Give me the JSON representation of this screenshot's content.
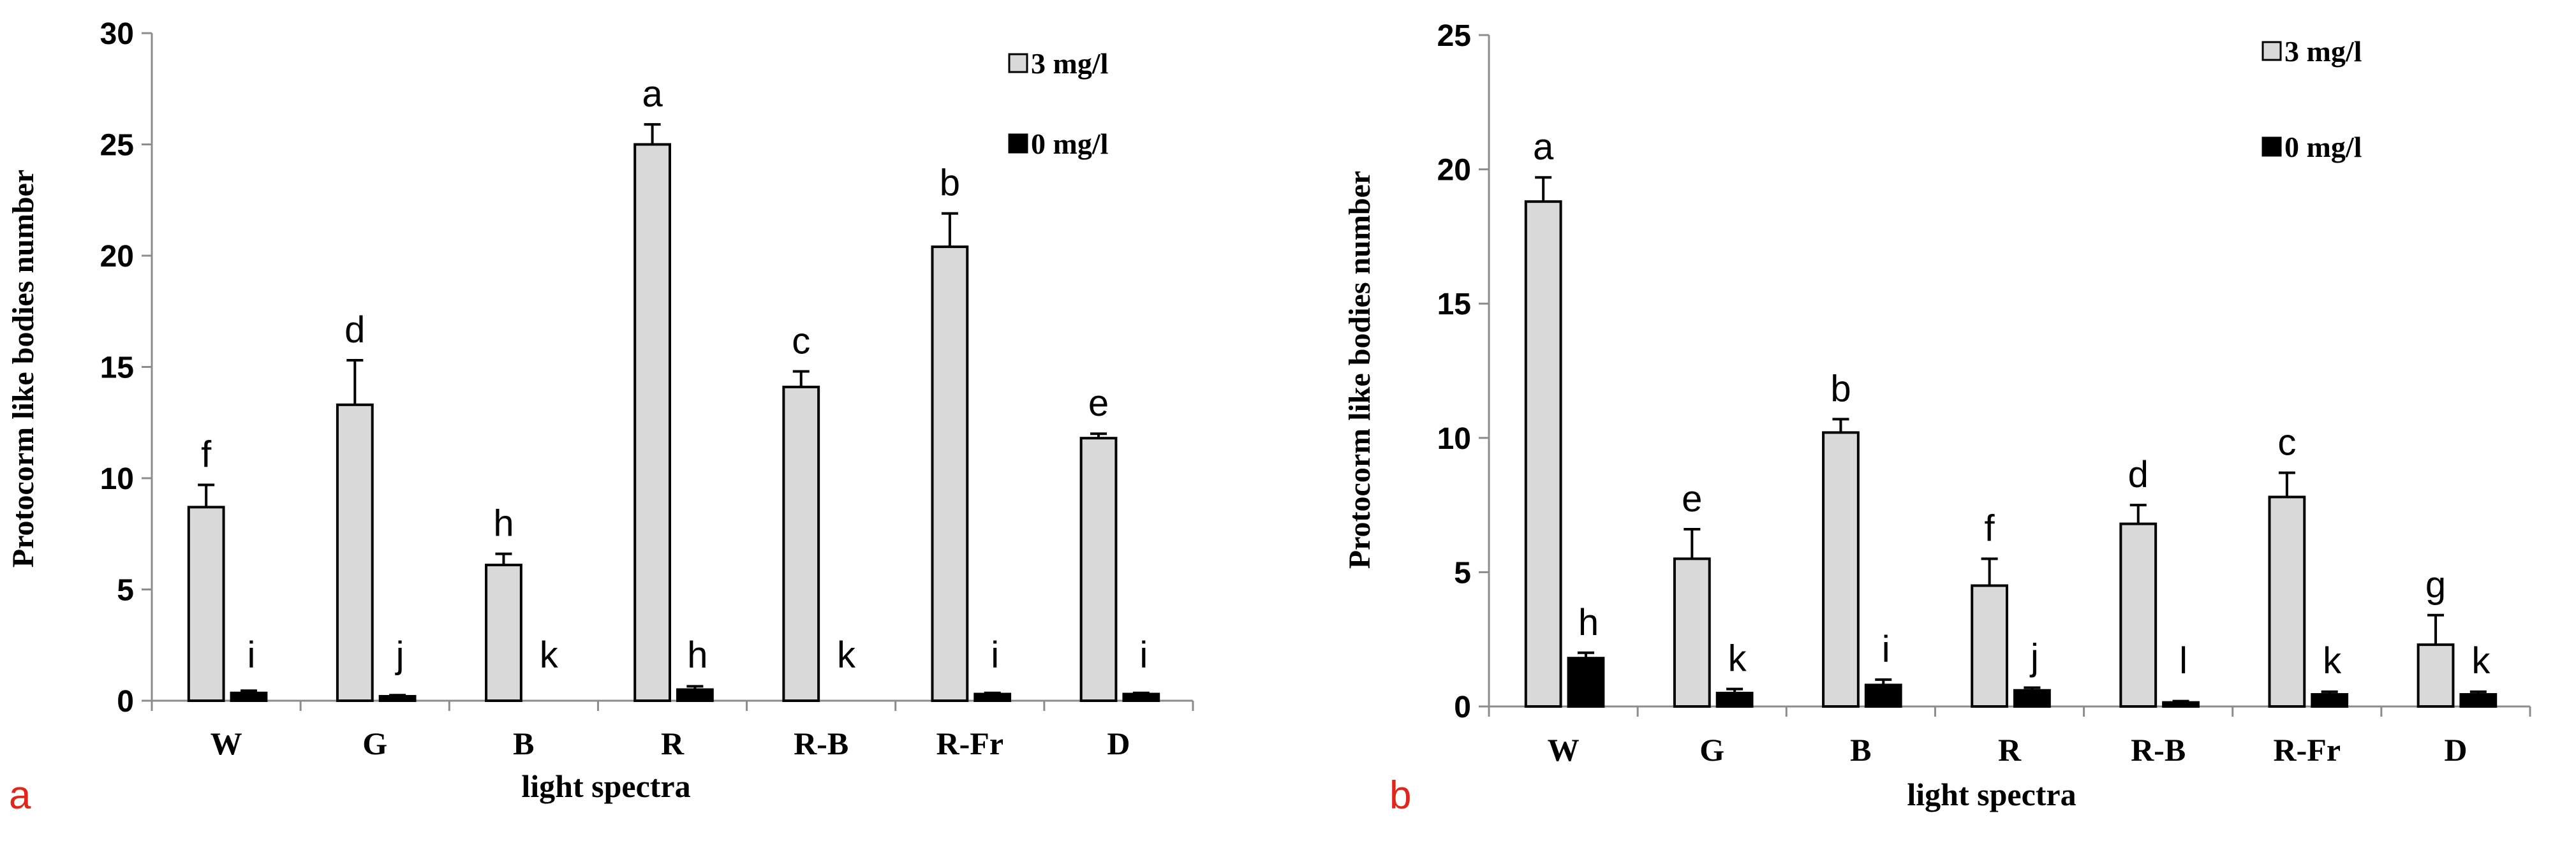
{
  "chart_data": [
    {
      "type": "bar",
      "panel_label": "a",
      "title": "",
      "xlabel": "light spectra",
      "ylabel": "Protocorm like bodies number",
      "ylim": [
        0,
        30
      ],
      "yticks": [
        0,
        5,
        10,
        15,
        20,
        25,
        30
      ],
      "categories": [
        "W",
        "G",
        "B",
        "R",
        "R-B",
        "R-Fr",
        "D"
      ],
      "series": [
        {
          "name": "3 mg/l",
          "color": "#d9d9d9",
          "values": [
            8.7,
            13.3,
            6.1,
            25.0,
            14.1,
            20.4,
            11.8
          ],
          "errors": [
            1.0,
            2.0,
            0.5,
            0.9,
            0.7,
            1.5,
            0.2
          ],
          "letters": [
            "f",
            "d",
            "h",
            "a",
            "c",
            "b",
            "e"
          ]
        },
        {
          "name": "0 mg/l",
          "color": "#000000",
          "values": [
            0.35,
            0.2,
            0.0,
            0.5,
            0.0,
            0.3,
            0.3
          ],
          "errors": [
            0.1,
            0.05,
            0.0,
            0.15,
            0.0,
            0.05,
            0.05
          ],
          "letters": [
            "i",
            "j",
            "k",
            "h",
            "k",
            "i",
            "i"
          ]
        }
      ],
      "legend": "top-right"
    },
    {
      "type": "bar",
      "panel_label": "b",
      "title": "",
      "xlabel": "light spectra",
      "ylabel": "Protocorm like bodies number",
      "ylim": [
        0,
        25
      ],
      "yticks": [
        0,
        5,
        10,
        15,
        20,
        25
      ],
      "categories": [
        "W",
        "G",
        "B",
        "R",
        "R-B",
        "R-Fr",
        "D"
      ],
      "series": [
        {
          "name": "3 mg/l",
          "color": "#d9d9d9",
          "values": [
            18.8,
            5.5,
            10.2,
            4.5,
            6.8,
            7.8,
            2.3
          ],
          "errors": [
            0.9,
            1.1,
            0.5,
            1.0,
            0.7,
            0.9,
            1.1
          ],
          "letters": [
            "a",
            "e",
            "b",
            "f",
            "d",
            "c",
            "g"
          ]
        },
        {
          "name": "0 mg/l",
          "color": "#000000",
          "values": [
            1.8,
            0.5,
            0.8,
            0.6,
            0.15,
            0.45,
            0.45
          ],
          "errors": [
            0.2,
            0.15,
            0.2,
            0.1,
            0.05,
            0.1,
            0.1
          ],
          "letters": [
            "h",
            "k",
            "i",
            "j",
            "l",
            "k",
            "k"
          ]
        }
      ],
      "legend": "top-right"
    }
  ]
}
